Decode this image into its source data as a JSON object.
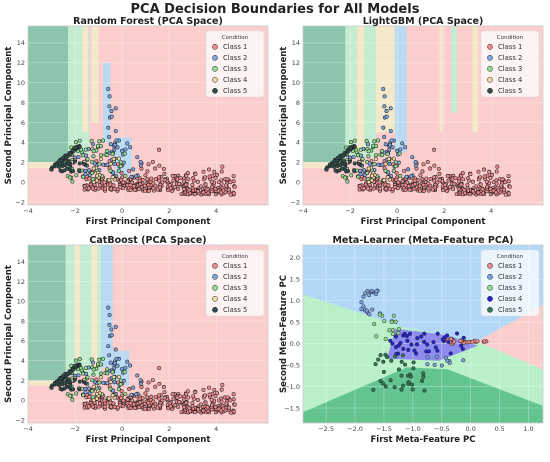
{
  "figure_title": "PCA Decision Boundaries for All Models",
  "colors": {
    "class1_region": "#fbcdcd",
    "class2_region": "#b9daf2",
    "class3_region": "#c4ecd0",
    "class4_region": "#f3e8c9",
    "class5_region": "#8cc4ac",
    "class1_point": "#f08a8a",
    "class2_point": "#7aa6e6",
    "class3_point": "#8fe08f",
    "class4_point": "#f3d9a4",
    "class5_point": "#2f4f4f",
    "meta_class2_region": "#b3d8f7",
    "meta_class3_region": "#b9f0c8",
    "meta_class4_region": "#8f8cf0",
    "meta_class5_region": "#63c48f",
    "meta_class4_point": "#2424d6",
    "meta_class5_point": "#2f7a4f"
  },
  "chart_data": [
    {
      "type": "scatter",
      "title": "Random Forest (PCA Space)",
      "xlabel": "First Principal Component",
      "ylabel": "Second Principal Component",
      "xlim": [
        -4,
        6.2
      ],
      "ylim": [
        -2.3,
        15.7
      ],
      "xticks": [
        -4,
        -2,
        0,
        2,
        4
      ],
      "yticks": [
        -2,
        0,
        2,
        4,
        6,
        8,
        10,
        12,
        14
      ],
      "legend": {
        "title": "Condition",
        "position": "upper right",
        "entries": [
          "Class 1",
          "Class 2",
          "Class 3",
          "Class 4",
          "Class 5"
        ]
      },
      "grid": true,
      "model": "rf"
    },
    {
      "type": "scatter",
      "title": "LightGBM (PCA Space)",
      "xlabel": "First Principal Component",
      "ylabel": "Second Principal Component",
      "xlim": [
        -4,
        6.2
      ],
      "ylim": [
        -2.3,
        15.7
      ],
      "xticks": [
        -4,
        -2,
        0,
        2,
        4
      ],
      "yticks": [
        -2,
        0,
        2,
        4,
        6,
        8,
        10,
        12,
        14
      ],
      "legend": {
        "title": "Condition",
        "position": "upper right",
        "entries": [
          "Class 1",
          "Class 2",
          "Class 3",
          "Class 4",
          "Class 5"
        ]
      },
      "grid": true,
      "model": "lgbm"
    },
    {
      "type": "scatter",
      "title": "CatBoost (PCA Space)",
      "xlabel": "First Principal Component",
      "ylabel": "Second Principal Component",
      "xlim": [
        -4,
        6.2
      ],
      "ylim": [
        -2.3,
        15.7
      ],
      "xticks": [
        -4,
        -2,
        0,
        2,
        4
      ],
      "yticks": [
        -2,
        0,
        2,
        4,
        6,
        8,
        10,
        12,
        14
      ],
      "legend": {
        "title": "Condition",
        "position": "upper right",
        "entries": [
          "Class 1",
          "Class 2",
          "Class 3",
          "Class 4",
          "Class 5"
        ]
      },
      "grid": true,
      "model": "cat"
    },
    {
      "type": "scatter",
      "title": "Meta-Learner (Meta-Feature PCA)",
      "xlabel": "First Meta-Feature PC",
      "ylabel": "Second Meta-Feature PC",
      "xlim": [
        -2.9,
        1.25
      ],
      "ylim": [
        -1.85,
        2.3
      ],
      "xticks": [
        -2.5,
        -2.0,
        -1.5,
        -1.0,
        -0.5,
        0.0,
        0.5,
        1.0
      ],
      "yticks": [
        -1.5,
        -1.0,
        -0.5,
        0.0,
        0.5,
        1.0,
        1.5,
        2.0
      ],
      "xtick_labels": [
        "−2.5",
        "−2.0",
        "−1.5",
        "−1.0",
        "−0.5",
        "0.0",
        "0.5",
        "1.0"
      ],
      "ytick_labels": [
        "−1.5",
        "−1.0",
        "−0.5",
        "0.0",
        "0.5",
        "1.0",
        "1.5",
        "2.0"
      ],
      "legend": {
        "title": "Condition",
        "position": "upper right",
        "entries": [
          "Class 1",
          "Class 2",
          "Class 3",
          "Class 4",
          "Class 5"
        ]
      },
      "grid": true,
      "model": "meta"
    }
  ]
}
